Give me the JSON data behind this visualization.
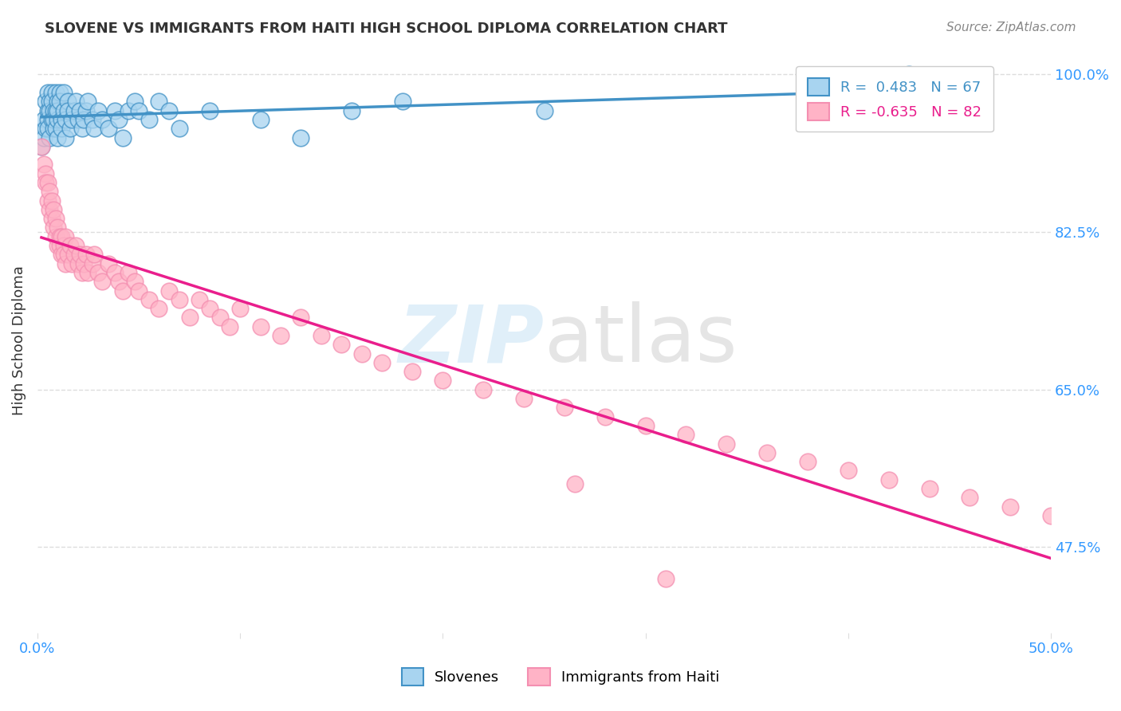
{
  "title": "SLOVENE VS IMMIGRANTS FROM HAITI HIGH SCHOOL DIPLOMA CORRELATION CHART",
  "source": "Source: ZipAtlas.com",
  "ylabel": "High School Diploma",
  "xlim": [
    0.0,
    0.5
  ],
  "ylim": [
    0.38,
    1.03
  ],
  "legend_R1": "R =  0.483",
  "legend_N1": "N = 67",
  "legend_R2": "R = -0.635",
  "legend_N2": "N = 82",
  "color_slovene_fill": "#a8d4f0",
  "color_slovene_edge": "#4292c6",
  "color_haiti_fill": "#ffb3c6",
  "color_haiti_edge": "#f48fb1",
  "color_line_slovene": "#4292c6",
  "color_line_haiti": "#e91e8c",
  "color_tick_label": "#3399ff",
  "background_color": "#ffffff",
  "grid_color": "#dddddd",
  "ytick_vals": [
    0.475,
    0.65,
    0.825,
    1.0
  ],
  "ytick_labels": [
    "47.5%",
    "65.0%",
    "82.5%",
    "100.0%"
  ],
  "slovene_x": [
    0.002,
    0.003,
    0.003,
    0.004,
    0.004,
    0.005,
    0.005,
    0.005,
    0.005,
    0.006,
    0.006,
    0.006,
    0.007,
    0.007,
    0.007,
    0.008,
    0.008,
    0.008,
    0.009,
    0.009,
    0.009,
    0.01,
    0.01,
    0.01,
    0.01,
    0.011,
    0.011,
    0.012,
    0.012,
    0.013,
    0.013,
    0.014,
    0.014,
    0.015,
    0.015,
    0.016,
    0.017,
    0.018,
    0.019,
    0.02,
    0.021,
    0.022,
    0.023,
    0.024,
    0.025,
    0.027,
    0.028,
    0.03,
    0.032,
    0.035,
    0.038,
    0.04,
    0.042,
    0.045,
    0.048,
    0.05,
    0.055,
    0.06,
    0.065,
    0.07,
    0.085,
    0.11,
    0.13,
    0.155,
    0.18,
    0.25,
    0.43
  ],
  "slovene_y": [
    0.92,
    0.95,
    0.93,
    0.97,
    0.94,
    0.96,
    0.98,
    0.95,
    0.94,
    0.97,
    0.96,
    0.93,
    0.98,
    0.95,
    0.97,
    0.96,
    0.94,
    0.95,
    0.98,
    0.96,
    0.94,
    0.97,
    0.95,
    0.93,
    0.96,
    0.98,
    0.97,
    0.95,
    0.94,
    0.96,
    0.98,
    0.95,
    0.93,
    0.97,
    0.96,
    0.94,
    0.95,
    0.96,
    0.97,
    0.95,
    0.96,
    0.94,
    0.95,
    0.96,
    0.97,
    0.95,
    0.94,
    0.96,
    0.95,
    0.94,
    0.96,
    0.95,
    0.93,
    0.96,
    0.97,
    0.96,
    0.95,
    0.97,
    0.96,
    0.94,
    0.96,
    0.95,
    0.93,
    0.96,
    0.97,
    0.96,
    1.0
  ],
  "haiti_x": [
    0.002,
    0.003,
    0.004,
    0.004,
    0.005,
    0.005,
    0.006,
    0.006,
    0.007,
    0.007,
    0.008,
    0.008,
    0.009,
    0.009,
    0.01,
    0.01,
    0.011,
    0.011,
    0.012,
    0.012,
    0.013,
    0.013,
    0.014,
    0.014,
    0.015,
    0.016,
    0.017,
    0.018,
    0.019,
    0.02,
    0.021,
    0.022,
    0.023,
    0.024,
    0.025,
    0.027,
    0.028,
    0.03,
    0.032,
    0.035,
    0.038,
    0.04,
    0.042,
    0.045,
    0.048,
    0.05,
    0.055,
    0.06,
    0.065,
    0.07,
    0.075,
    0.08,
    0.085,
    0.09,
    0.095,
    0.1,
    0.11,
    0.12,
    0.13,
    0.14,
    0.15,
    0.16,
    0.17,
    0.185,
    0.2,
    0.22,
    0.24,
    0.26,
    0.28,
    0.3,
    0.32,
    0.34,
    0.36,
    0.38,
    0.4,
    0.42,
    0.44,
    0.46,
    0.48,
    0.5,
    0.265,
    0.31
  ],
  "haiti_y": [
    0.92,
    0.9,
    0.89,
    0.88,
    0.88,
    0.86,
    0.87,
    0.85,
    0.86,
    0.84,
    0.85,
    0.83,
    0.84,
    0.82,
    0.83,
    0.81,
    0.82,
    0.81,
    0.82,
    0.8,
    0.81,
    0.8,
    0.82,
    0.79,
    0.8,
    0.81,
    0.79,
    0.8,
    0.81,
    0.79,
    0.8,
    0.78,
    0.79,
    0.8,
    0.78,
    0.79,
    0.8,
    0.78,
    0.77,
    0.79,
    0.78,
    0.77,
    0.76,
    0.78,
    0.77,
    0.76,
    0.75,
    0.74,
    0.76,
    0.75,
    0.73,
    0.75,
    0.74,
    0.73,
    0.72,
    0.74,
    0.72,
    0.71,
    0.73,
    0.71,
    0.7,
    0.69,
    0.68,
    0.67,
    0.66,
    0.65,
    0.64,
    0.63,
    0.62,
    0.61,
    0.6,
    0.59,
    0.58,
    0.57,
    0.56,
    0.55,
    0.54,
    0.53,
    0.52,
    0.51,
    0.545,
    0.44
  ]
}
